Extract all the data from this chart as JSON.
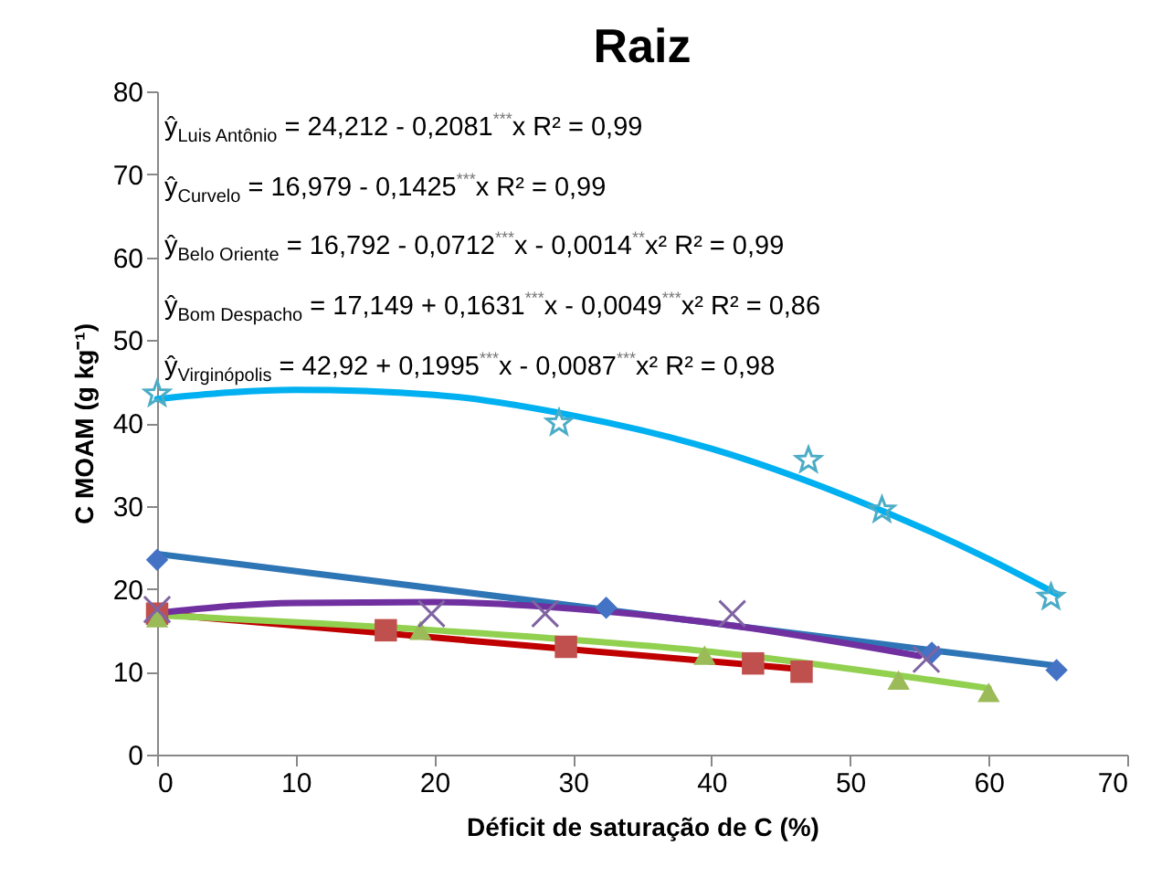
{
  "chart_data": {
    "type": "scatter",
    "title": "Raiz",
    "xlabel": "Déficit de saturação de C (%)",
    "ylabel": "C MOAM (g kg⁻¹)",
    "xlim": [
      0,
      70
    ],
    "xticks": [
      0,
      10,
      20,
      30,
      40,
      50,
      60,
      70
    ],
    "ylim": [
      0,
      80
    ],
    "yticks": [
      0,
      10,
      20,
      30,
      40,
      50,
      60,
      70,
      80
    ],
    "grid": false,
    "line_style": "solid",
    "annotations": [
      "ŷ$_{Luis Antônio}$ = 24,212 - 0,2081$^{***}$x R² = 0,99",
      "ŷ$_{Curvelo}$ = 16,979 - 0,1425$^{***}$x R² = 0,99",
      "ŷ$_{Belo Oriente}$ = 16,792 - 0,0712$^{***}$x - 0,0014$^{**}$x² R² = 0,99",
      "ŷ$_{Bom Despacho}$ = 17,149 + 0,1631$^{***}$x - 0,0049$^{***}$x² R² = 0,86",
      "ŷ$_{Virginópolis}$ = 42,92 + 0,1995$^{***}$x - 0,0087$^{***}$x² R² = 0,98"
    ],
    "series": [
      {
        "type": "line",
        "color": "#2e75b6",
        "x": [
          0,
          65
        ],
        "values": [
          24.2,
          10.7
        ]
      },
      {
        "type": "line",
        "color": "#c00000",
        "x": [
          0,
          46.5
        ],
        "values": [
          17,
          10.3
        ]
      },
      {
        "type": "line",
        "color": "#92d050",
        "x": [
          0,
          20,
          40,
          60
        ],
        "values": [
          16.8,
          15,
          12.4,
          8
        ]
      },
      {
        "type": "line",
        "color": "#7030a0",
        "x": [
          0,
          10,
          20,
          30,
          40,
          55
        ],
        "values": [
          17.1,
          18.3,
          18.4,
          17.6,
          15.9,
          11.9
        ]
      },
      {
        "type": "line",
        "color": "#00b0f0",
        "x": [
          0,
          10,
          20,
          30,
          40,
          50,
          60,
          65
        ],
        "values": [
          42.9,
          44,
          43.4,
          40.9,
          36.9,
          31,
          23.6,
          19.3
        ]
      },
      {
        "type": "scatter",
        "color": "#4472c4",
        "marker": "diamond",
        "x": [
          0,
          32.4,
          55.9,
          64.9
        ],
        "values": [
          23.5,
          17.7,
          12.3,
          10.2
        ]
      },
      {
        "type": "scatter",
        "color": "#c0504d",
        "marker": "square",
        "x": [
          0,
          16.5,
          29.5,
          43,
          46.5
        ],
        "values": [
          17,
          15,
          13,
          11,
          10
        ]
      },
      {
        "type": "scatter",
        "color": "#9bbb59",
        "marker": "triangle",
        "x": [
          0,
          19,
          39.5,
          53.5,
          60
        ],
        "values": [
          16.5,
          15,
          12,
          9,
          7.5
        ]
      },
      {
        "type": "scatter",
        "color": "#8064a2",
        "marker": "cross",
        "x": [
          0,
          19.8,
          28,
          41.5,
          55.5
        ],
        "values": [
          17.5,
          17,
          17,
          17,
          11.5
        ]
      },
      {
        "type": "scatter",
        "color": "#4bacc6",
        "marker": "star",
        "x": [
          0,
          29,
          47,
          52.3,
          64.5
        ],
        "values": [
          43.5,
          40,
          35.5,
          29.5,
          19
        ]
      }
    ]
  }
}
